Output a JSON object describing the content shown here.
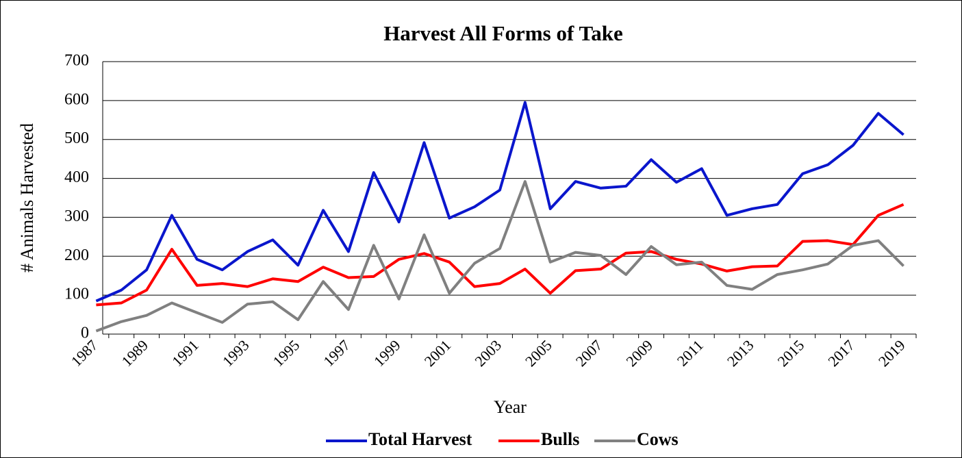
{
  "chart_data": {
    "type": "line",
    "title": "Harvest All Forms of Take",
    "x_label": "Year",
    "y_label": "# Animals Harvested",
    "categories": [
      "1987",
      null,
      "1989",
      null,
      "1991",
      null,
      "1993",
      null,
      "1995",
      null,
      "1997",
      null,
      "1999",
      null,
      "2001",
      null,
      "2003",
      null,
      "2005",
      null,
      "2007",
      null,
      "2009",
      null,
      "2011",
      null,
      "2013",
      null,
      "2015",
      null,
      "2017",
      null,
      "2019"
    ],
    "series": [
      {
        "name": "Total Harvest",
        "color": "#0a16cc",
        "values": [
          85,
          113,
          165,
          305,
          192,
          165,
          212,
          242,
          177,
          318,
          212,
          415,
          288,
          492,
          298,
          327,
          370,
          595,
          322,
          392,
          375,
          380,
          448,
          390,
          425,
          305,
          322,
          333,
          412,
          435,
          485,
          567,
          512
        ]
      },
      {
        "name": "Bulls",
        "color": "#ff0000",
        "values": [
          75,
          80,
          113,
          218,
          125,
          130,
          122,
          142,
          135,
          172,
          145,
          148,
          192,
          207,
          185,
          122,
          130,
          167,
          105,
          163,
          167,
          208,
          212,
          192,
          180,
          162,
          173,
          175,
          238,
          240,
          230,
          305,
          333
        ]
      },
      {
        "name": "Cows",
        "color": "#808080",
        "values": [
          8,
          32,
          48,
          80,
          55,
          30,
          77,
          83,
          37,
          135,
          63,
          228,
          90,
          255,
          105,
          182,
          220,
          392,
          185,
          210,
          202,
          153,
          225,
          178,
          185,
          125,
          115,
          153,
          165,
          180,
          228,
          240,
          175
        ]
      }
    ],
    "ylim": [
      0,
      700
    ],
    "yticks": [
      0,
      100,
      200,
      300,
      400,
      500,
      600,
      700
    ],
    "grid": true,
    "legend": "bottom"
  }
}
